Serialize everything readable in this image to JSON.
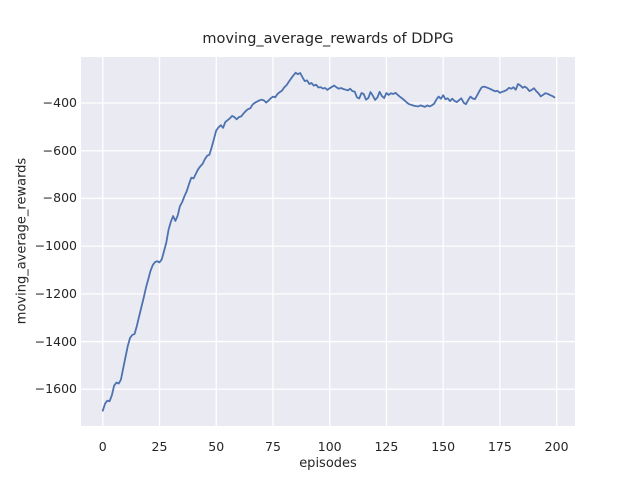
{
  "figure": {
    "title": "moving_average_rewards of DDPG",
    "xlabel": "episodes",
    "ylabel": "moving_average_rewards",
    "colors": {
      "figure_bg": "#ffffff",
      "plot_bg": "#eaeaf2",
      "grid": "#ffffff",
      "line": "#4c72b0",
      "text": "#262626"
    }
  },
  "chart_data": {
    "type": "line",
    "title": "moving_average_rewards of DDPG",
    "xlabel": "episodes",
    "ylabel": "moving_average_rewards",
    "x_ticks": [
      0,
      25,
      50,
      75,
      100,
      125,
      150,
      175,
      200
    ],
    "y_ticks": [
      -400,
      -600,
      -800,
      -1000,
      -1200,
      -1400,
      -1600
    ],
    "xlim": [
      -9.6,
      208.1
    ],
    "ylim": [
      -1754,
      -207
    ],
    "grid": true,
    "legend": false,
    "series": [
      {
        "name": "moving_average_rewards",
        "x_start": 0,
        "x_step": 1,
        "y": [
          -1690,
          -1660,
          -1648,
          -1650,
          -1625,
          -1585,
          -1572,
          -1576,
          -1560,
          -1512,
          -1465,
          -1420,
          -1385,
          -1372,
          -1368,
          -1335,
          -1295,
          -1255,
          -1218,
          -1175,
          -1140,
          -1105,
          -1080,
          -1067,
          -1063,
          -1068,
          -1055,
          -1020,
          -985,
          -930,
          -897,
          -874,
          -894,
          -872,
          -833,
          -815,
          -790,
          -770,
          -740,
          -713,
          -716,
          -697,
          -678,
          -665,
          -655,
          -635,
          -621,
          -617,
          -585,
          -550,
          -515,
          -502,
          -493,
          -504,
          -480,
          -472,
          -464,
          -454,
          -459,
          -468,
          -459,
          -456,
          -444,
          -434,
          -426,
          -422,
          -407,
          -399,
          -394,
          -389,
          -386,
          -389,
          -398,
          -390,
          -380,
          -373,
          -376,
          -362,
          -354,
          -348,
          -334,
          -325,
          -310,
          -297,
          -284,
          -273,
          -279,
          -274,
          -292,
          -308,
          -305,
          -320,
          -316,
          -327,
          -323,
          -335,
          -333,
          -339,
          -337,
          -345,
          -338,
          -332,
          -327,
          -334,
          -340,
          -337,
          -341,
          -344,
          -347,
          -340,
          -350,
          -352,
          -376,
          -381,
          -358,
          -362,
          -386,
          -379,
          -354,
          -369,
          -387,
          -377,
          -353,
          -371,
          -379,
          -358,
          -366,
          -359,
          -362,
          -357,
          -366,
          -374,
          -381,
          -389,
          -398,
          -405,
          -408,
          -411,
          -413,
          -414,
          -410,
          -413,
          -416,
          -410,
          -414,
          -410,
          -403,
          -385,
          -373,
          -382,
          -367,
          -384,
          -380,
          -392,
          -382,
          -391,
          -396,
          -388,
          -380,
          -398,
          -405,
          -388,
          -373,
          -381,
          -384,
          -367,
          -349,
          -334,
          -331,
          -334,
          -338,
          -342,
          -347,
          -351,
          -349,
          -357,
          -353,
          -350,
          -345,
          -336,
          -340,
          -334,
          -344,
          -320,
          -326,
          -336,
          -331,
          -338,
          -350,
          -345,
          -338,
          -350,
          -359,
          -372,
          -366,
          -359,
          -361,
          -366,
          -370,
          -376
        ]
      }
    ]
  }
}
